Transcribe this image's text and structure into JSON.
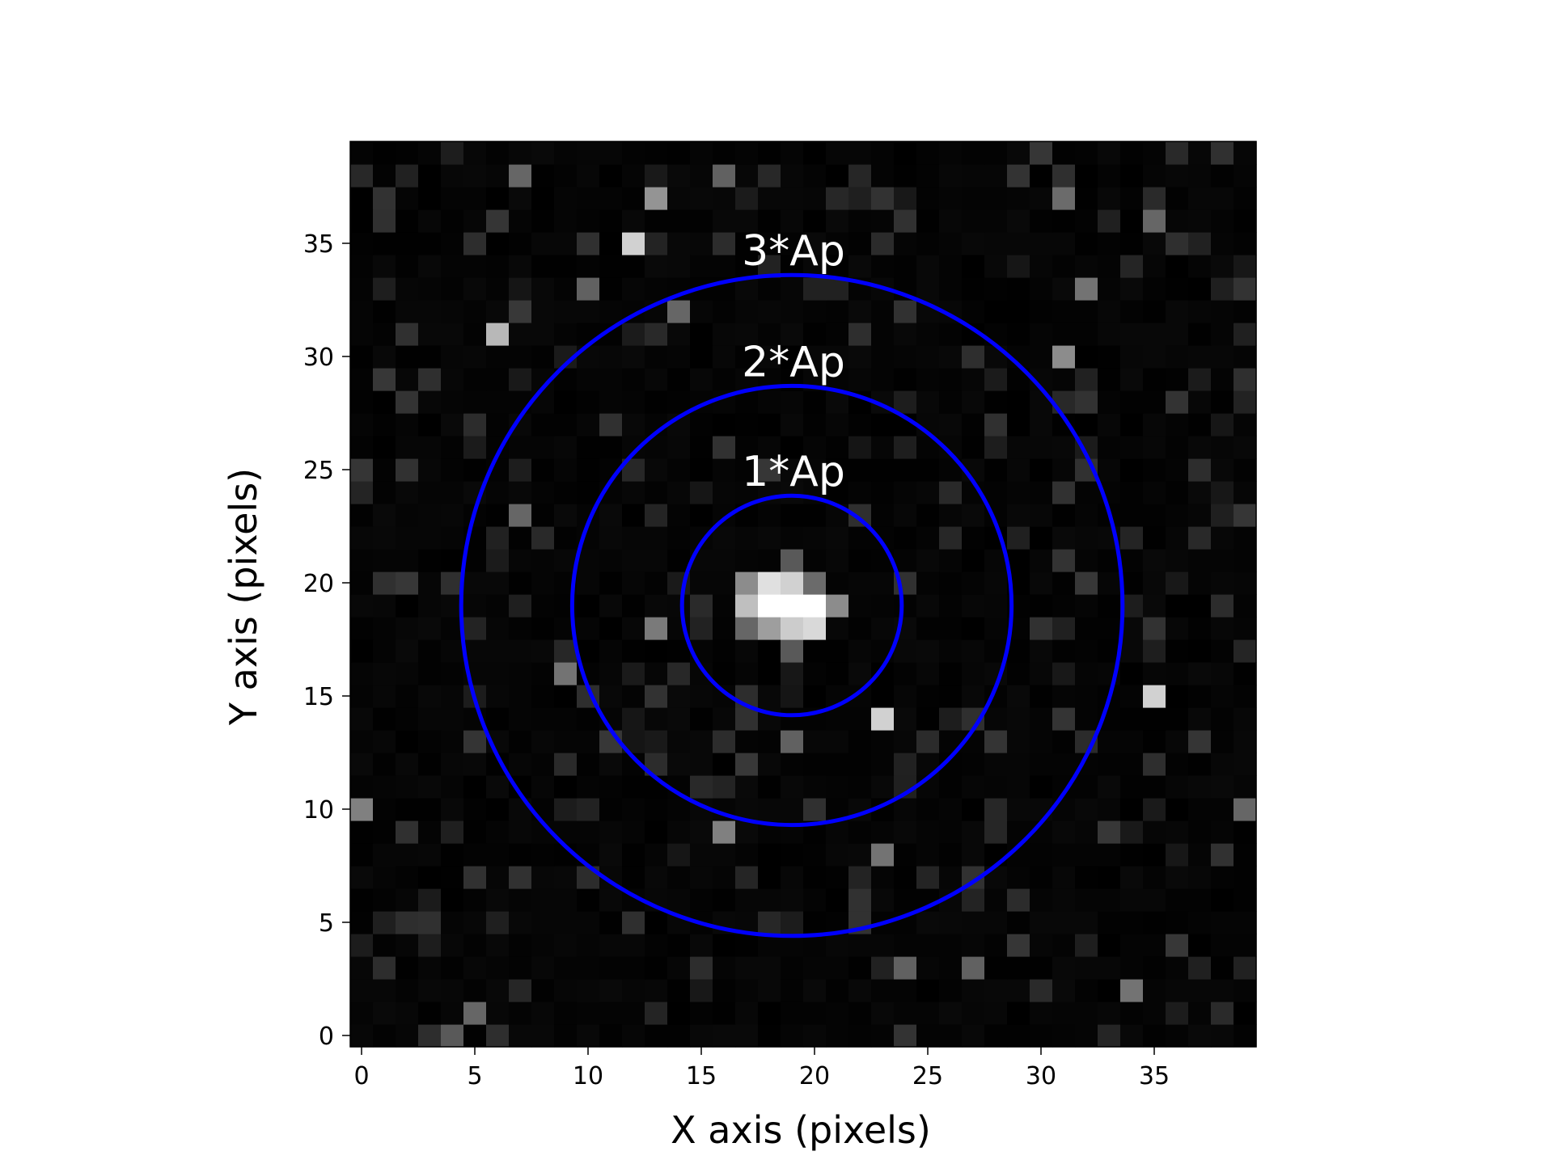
{
  "chart_data": {
    "type": "heatmap",
    "title": "",
    "xlabel": "X axis (pixels)",
    "ylabel": "Y axis (pixels)",
    "xlim": [
      -0.5,
      39.5
    ],
    "ylim": [
      -0.5,
      39.5
    ],
    "xticks": [
      0,
      5,
      10,
      15,
      20,
      25,
      30,
      35
    ],
    "yticks": [
      0,
      5,
      10,
      15,
      20,
      25,
      30,
      35
    ],
    "grid": false,
    "colormap": "gray",
    "image_size": [
      40,
      40
    ],
    "background_level": 0.04,
    "source_pixels": [
      {
        "x": 18,
        "y": 19,
        "value": 1.0
      },
      {
        "x": 19,
        "y": 19,
        "value": 1.0
      },
      {
        "x": 20,
        "y": 19,
        "value": 1.0
      },
      {
        "x": 18,
        "y": 20,
        "value": 0.88
      },
      {
        "x": 19,
        "y": 20,
        "value": 0.82
      },
      {
        "x": 17,
        "y": 19,
        "value": 0.75
      },
      {
        "x": 19,
        "y": 18,
        "value": 0.8
      },
      {
        "x": 20,
        "y": 18,
        "value": 0.85
      },
      {
        "x": 18,
        "y": 18,
        "value": 0.62
      },
      {
        "x": 17,
        "y": 20,
        "value": 0.55
      },
      {
        "x": 21,
        "y": 19,
        "value": 0.55
      },
      {
        "x": 17,
        "y": 18,
        "value": 0.4
      },
      {
        "x": 20,
        "y": 20,
        "value": 0.42
      },
      {
        "x": 19,
        "y": 21,
        "value": 0.35
      },
      {
        "x": 19,
        "y": 17,
        "value": 0.35
      }
    ],
    "bright_pixels": [
      {
        "x": 12,
        "y": 35,
        "value": 0.82
      },
      {
        "x": 6,
        "y": 31,
        "value": 0.72
      },
      {
        "x": 13,
        "y": 37,
        "value": 0.58
      },
      {
        "x": 35,
        "y": 15,
        "value": 0.82
      },
      {
        "x": 23,
        "y": 14,
        "value": 0.82
      },
      {
        "x": 31,
        "y": 30,
        "value": 0.55
      },
      {
        "x": 0,
        "y": 10,
        "value": 0.5
      },
      {
        "x": 34,
        "y": 2,
        "value": 0.45
      },
      {
        "x": 13,
        "y": 18,
        "value": 0.48
      },
      {
        "x": 9,
        "y": 16,
        "value": 0.45
      },
      {
        "x": 16,
        "y": 9,
        "value": 0.5
      },
      {
        "x": 23,
        "y": 8,
        "value": 0.45
      },
      {
        "x": 5,
        "y": 1,
        "value": 0.4
      },
      {
        "x": 4,
        "y": 0,
        "value": 0.35
      },
      {
        "x": 7,
        "y": 38,
        "value": 0.4
      },
      {
        "x": 16,
        "y": 38,
        "value": 0.38
      },
      {
        "x": 10,
        "y": 33,
        "value": 0.38
      },
      {
        "x": 14,
        "y": 32,
        "value": 0.4
      },
      {
        "x": 7,
        "y": 23,
        "value": 0.4
      },
      {
        "x": 39,
        "y": 10,
        "value": 0.4
      },
      {
        "x": 32,
        "y": 33,
        "value": 0.45
      },
      {
        "x": 31,
        "y": 37,
        "value": 0.42
      },
      {
        "x": 35,
        "y": 36,
        "value": 0.4
      },
      {
        "x": 27,
        "y": 3,
        "value": 0.38
      },
      {
        "x": 24,
        "y": 3,
        "value": 0.38
      },
      {
        "x": 19,
        "y": 13,
        "value": 0.38
      }
    ],
    "apertures": [
      {
        "label": "1*Ap",
        "center_x": 19,
        "center_y": 19,
        "radius": 4.85
      },
      {
        "label": "2*Ap",
        "center_x": 19,
        "center_y": 19,
        "radius": 9.7
      },
      {
        "label": "3*Ap",
        "center_x": 19,
        "center_y": 19,
        "radius": 14.6
      }
    ],
    "aperture_color": "#0000ff",
    "label_color": "#ffffff"
  }
}
